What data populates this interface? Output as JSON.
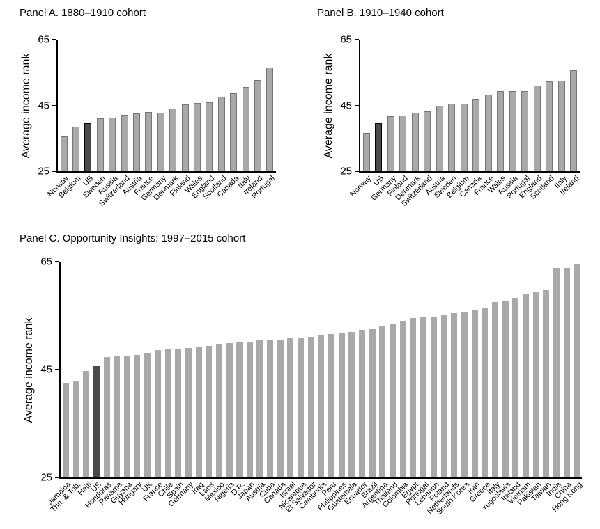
{
  "styles": {
    "bar_fill": "#a9a9ab",
    "bar_stroke": "#767678",
    "highlight_fill": "#4a4a4c",
    "highlight_stroke": "#000000",
    "axis_color": "#000000",
    "background": "#ffffff"
  },
  "chart_data": [
    {
      "type": "bar",
      "title": "Panel A. 1880–1910 cohort",
      "ylabel": "Average income rank",
      "ylim": [
        25,
        65
      ],
      "yticks": [
        25,
        45,
        65
      ],
      "grid": false,
      "legend": "none",
      "highlight": "US",
      "categories": [
        "Norway",
        "Belgium",
        "US",
        "Sweden",
        "Russia",
        "Switzerland",
        "Austria",
        "France",
        "Germany",
        "Denmark",
        "Finland",
        "Wales",
        "England",
        "Scotland",
        "Canada",
        "Italy",
        "Ireland",
        "Portugal"
      ],
      "values": [
        35.6,
        38.5,
        39.5,
        41.1,
        41.2,
        42.2,
        42.6,
        42.9,
        42.8,
        44.0,
        45.4,
        45.8,
        46.0,
        47.6,
        48.6,
        50.6,
        52.8,
        56.5
      ]
    },
    {
      "type": "bar",
      "title": "Panel B. 1910–1940 cohort",
      "ylabel": "Average income rank",
      "ylim": [
        25,
        65
      ],
      "yticks": [
        25,
        45,
        65
      ],
      "grid": false,
      "legend": "none",
      "highlight": "US",
      "categories": [
        "Norway",
        "US",
        "Germany",
        "Finland",
        "Denmark",
        "Switzerland",
        "Austria",
        "Sweden",
        "Belgium",
        "Canada",
        "France",
        "Wales",
        "Russia",
        "Portugal",
        "England",
        "Scotland",
        "Italy",
        "Ireland"
      ],
      "values": [
        36.6,
        39.6,
        41.8,
        42.0,
        42.7,
        43.2,
        45.0,
        45.5,
        45.6,
        47.0,
        48.2,
        49.4,
        49.3,
        49.4,
        51.0,
        52.2,
        52.5,
        55.6
      ]
    },
    {
      "type": "bar",
      "title": "Panel C. Opportunity Insights: 1997–2015 cohort",
      "ylabel": "Average income rank",
      "ylim": [
        25,
        65
      ],
      "yticks": [
        25,
        45,
        65
      ],
      "grid": false,
      "legend": "none",
      "highlight": "US",
      "categories": [
        "Jamaica",
        "Trin. & Tob.",
        "Haiti",
        "US",
        "Honduras",
        "Panama",
        "Guyana",
        "Hungary",
        "UK",
        "France",
        "Chile",
        "Spain",
        "Germany",
        "Iraq",
        "Laos",
        "Mexico",
        "Nigeria",
        "D.R.",
        "Japan",
        "Austria",
        "Cuba",
        "Canada",
        "Israel",
        "Nicaragua",
        "El Salvador",
        "Cambodia",
        "Peru",
        "Philippines",
        "Guatemala",
        "Ecuador",
        "Brazil",
        "Argentina",
        "Thailand",
        "Colombia",
        "Egypt",
        "Portugal",
        "Lebanon",
        "Poland",
        "Netherlands",
        "South Korea",
        "Iran",
        "Greece",
        "Italy",
        "Yugoslavia",
        "Ireland",
        "Vietnam",
        "Pakistan",
        "Taiwan",
        "India",
        "China",
        "Hong Kong"
      ],
      "values": [
        42.5,
        43.0,
        44.8,
        45.7,
        47.3,
        47.4,
        47.5,
        47.7,
        48.1,
        48.6,
        48.8,
        48.9,
        49.0,
        49.1,
        49.4,
        49.8,
        49.9,
        50.0,
        50.1,
        50.4,
        50.5,
        50.6,
        50.9,
        51.0,
        51.1,
        51.3,
        51.6,
        51.9,
        52.0,
        52.4,
        52.5,
        53.1,
        53.4,
        54.0,
        54.5,
        54.7,
        54.8,
        55.2,
        55.4,
        55.7,
        56.1,
        56.5,
        57.5,
        57.6,
        58.3,
        59.1,
        59.4,
        59.9,
        63.8,
        63.9,
        64.5
      ]
    }
  ]
}
